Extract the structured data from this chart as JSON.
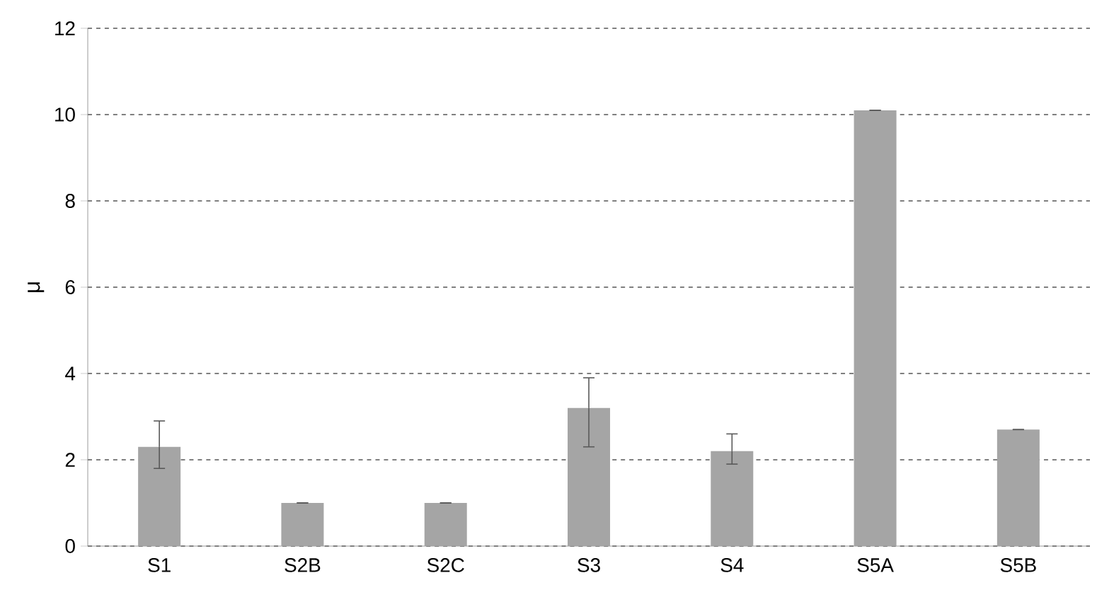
{
  "chart_data": {
    "type": "bar",
    "ylabel": "μ",
    "categories": [
      "S1",
      "S2B",
      "S2C",
      "S3",
      "S4",
      "S5A",
      "S5B"
    ],
    "values": [
      2.3,
      1.0,
      1.0,
      3.2,
      2.2,
      10.1,
      2.7
    ],
    "errors": [
      [
        1.8,
        2.9
      ],
      null,
      null,
      [
        2.3,
        3.9
      ],
      [
        1.9,
        2.6
      ],
      null,
      null
    ],
    "color": "#a5a5a5",
    "ylim": [
      0,
      12
    ],
    "yticks": [
      0,
      2,
      4,
      6,
      8,
      10,
      12
    ],
    "grid": "y"
  }
}
